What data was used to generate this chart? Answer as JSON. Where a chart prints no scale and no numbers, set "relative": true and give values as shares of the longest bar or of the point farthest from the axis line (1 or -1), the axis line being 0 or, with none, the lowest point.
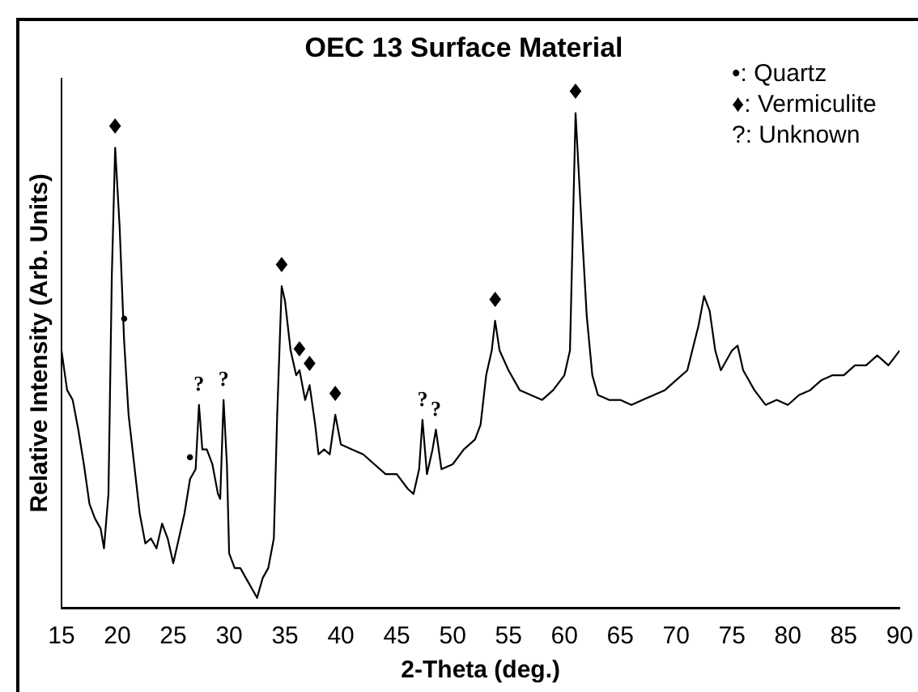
{
  "chart_data": {
    "type": "line",
    "title": "OEC 13 Surface Material",
    "xlabel": "2-Theta (deg.)",
    "ylabel": "Relative Intensity (Arb. Units)",
    "relative": true,
    "color": "#000000",
    "marker": "none",
    "grid": false,
    "legend": false,
    "xlim": [
      15,
      90
    ],
    "xticks": [
      15,
      20,
      25,
      30,
      35,
      40,
      45,
      50,
      55,
      60,
      65,
      70,
      75,
      80,
      85,
      90
    ],
    "x": [
      15,
      15.5,
      16,
      16.5,
      17,
      17.5,
      18,
      18.5,
      18.8,
      19.2,
      19.5,
      19.8,
      20.2,
      20.6,
      21,
      21.5,
      22,
      22.5,
      23,
      23.5,
      24,
      24.5,
      25,
      25.5,
      26,
      26.5,
      27,
      27.3,
      27.6,
      28,
      28.5,
      29,
      29.2,
      29.5,
      29.8,
      30,
      30.5,
      31,
      31.5,
      32,
      32.5,
      33,
      33.5,
      34,
      34.3,
      34.7,
      35,
      35.5,
      36,
      36.3,
      36.8,
      37.2,
      37.7,
      38,
      38.5,
      39,
      39.5,
      40,
      41,
      42,
      43,
      44,
      45,
      46,
      46.5,
      47,
      47.3,
      47.7,
      48.2,
      48.5,
      49,
      50,
      51,
      52,
      52.5,
      53,
      53.5,
      53.8,
      54.2,
      55,
      56,
      57,
      58,
      59,
      60,
      60.5,
      61,
      61.5,
      62,
      62.5,
      63,
      64,
      65,
      66,
      67,
      68,
      69,
      70,
      71,
      72,
      72.5,
      73,
      73.5,
      74,
      75,
      75.5,
      76,
      77,
      78,
      79,
      80,
      81,
      82,
      83,
      84,
      85,
      86,
      87,
      88,
      89,
      90
    ],
    "values": [
      0.52,
      0.44,
      0.42,
      0.36,
      0.29,
      0.21,
      0.18,
      0.16,
      0.12,
      0.23,
      0.67,
      0.93,
      0.77,
      0.54,
      0.39,
      0.29,
      0.19,
      0.13,
      0.14,
      0.12,
      0.17,
      0.14,
      0.09,
      0.14,
      0.19,
      0.26,
      0.28,
      0.41,
      0.32,
      0.32,
      0.29,
      0.23,
      0.22,
      0.42,
      0.29,
      0.11,
      0.08,
      0.08,
      0.06,
      0.04,
      0.02,
      0.06,
      0.08,
      0.14,
      0.39,
      0.65,
      0.62,
      0.52,
      0.47,
      0.48,
      0.42,
      0.45,
      0.37,
      0.31,
      0.32,
      0.31,
      0.39,
      0.33,
      0.32,
      0.31,
      0.29,
      0.27,
      0.27,
      0.24,
      0.23,
      0.28,
      0.38,
      0.27,
      0.32,
      0.36,
      0.28,
      0.29,
      0.32,
      0.34,
      0.37,
      0.47,
      0.52,
      0.58,
      0.52,
      0.48,
      0.44,
      0.43,
      0.42,
      0.44,
      0.47,
      0.52,
      1,
      0.79,
      0.59,
      0.47,
      0.43,
      0.42,
      0.42,
      0.41,
      0.42,
      0.43,
      0.44,
      0.46,
      0.48,
      0.57,
      0.63,
      0.6,
      0.52,
      0.48,
      0.52,
      0.53,
      0.48,
      0.44,
      0.41,
      0.42,
      0.41,
      0.43,
      0.44,
      0.46,
      0.47,
      0.47,
      0.49,
      0.49,
      0.51,
      0.49,
      0.52
    ],
    "annotations": [
      "•: Quartz",
      "♦: Vermiculite",
      "?: Unknown",
      {
        "text": "♦",
        "x": 19.8,
        "y": 0.93
      },
      {
        "text": "•",
        "x": 20.6,
        "y": 0.54
      },
      {
        "text": "•",
        "x": 26.5,
        "y": 0.26
      },
      {
        "text": "?",
        "x": 27.3,
        "y": 0.41
      },
      {
        "text": "?",
        "x": 29.5,
        "y": 0.42
      },
      {
        "text": "♦",
        "x": 34.7,
        "y": 0.65
      },
      {
        "text": "♦",
        "x": 36.3,
        "y": 0.48
      },
      {
        "text": "♦",
        "x": 37.2,
        "y": 0.45
      },
      {
        "text": "♦",
        "x": 39.5,
        "y": 0.39
      },
      {
        "text": "?",
        "x": 47.3,
        "y": 0.38
      },
      {
        "text": "?",
        "x": 48.5,
        "y": 0.36
      },
      {
        "text": "♦",
        "x": 53.8,
        "y": 0.58
      },
      {
        "text": "♦",
        "x": 61,
        "y": 1
      }
    ]
  }
}
